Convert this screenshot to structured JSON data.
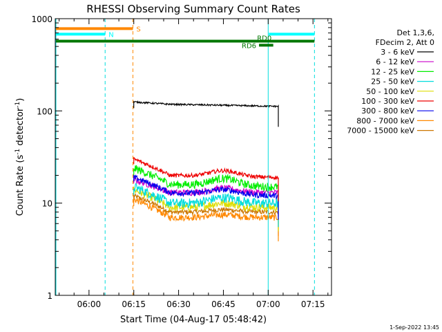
{
  "chart_data": {
    "type": "line",
    "title": "RHESSI Observing Summary Count Rates",
    "xlabel": "Start Time (04-Aug-17 05:48:42)",
    "ylabel_main": "Count Rate (s",
    "ylabel_sup1": "-1",
    "ylabel_mid": " detector",
    "ylabel_sup2": "-1",
    "ylabel_end": ")",
    "yscale": "log",
    "ylim": [
      1,
      1000
    ],
    "xlim_minutes": [
      0,
      92.5
    ],
    "x_ticks": [
      {
        "label": "06:00",
        "minute": 11.3
      },
      {
        "label": "06:15",
        "minute": 26.3
      },
      {
        "label": "06:30",
        "minute": 41.3
      },
      {
        "label": "06:45",
        "minute": 56.3
      },
      {
        "label": "07:00",
        "minute": 71.3
      },
      {
        "label": "07:15",
        "minute": 86.3
      }
    ],
    "y_ticks": [
      {
        "label": "1",
        "value": 1
      },
      {
        "label": "10",
        "value": 10
      },
      {
        "label": "100",
        "value": 100
      },
      {
        "label": "1000",
        "value": 1000
      }
    ],
    "data_start_minute": 26.3,
    "data_end_minute": 74.7,
    "legend_header": [
      "Det 1,3,6,",
      "FDecim 2, Att 0"
    ],
    "series": [
      {
        "name": "3 - 6 keV",
        "color": "#000000",
        "start": 125,
        "mid": 118,
        "end": 112,
        "hump": 0,
        "noise": 0.02
      },
      {
        "name": "6 - 12 keV",
        "color": "#cc00cc",
        "start": 18,
        "mid": 13,
        "end": 13,
        "hump": 1.5,
        "noise": 0.08
      },
      {
        "name": "12 - 25 keV",
        "color": "#00ee00",
        "start": 24,
        "mid": 16,
        "end": 15,
        "hump": 3,
        "noise": 0.1
      },
      {
        "name": "25 - 50 keV",
        "color": "#00dddd",
        "start": 15,
        "mid": 10,
        "end": 10,
        "hump": 1.5,
        "noise": 0.12
      },
      {
        "name": "50 - 100 keV",
        "color": "#dddd00",
        "start": 14,
        "mid": 9,
        "end": 9,
        "hump": 1,
        "noise": 0.1
      },
      {
        "name": "100 - 300 keV",
        "color": "#ee0000",
        "start": 30,
        "mid": 20,
        "end": 19,
        "hump": 3,
        "noise": 0.05
      },
      {
        "name": "300 - 800 keV",
        "color": "#0000ee",
        "start": 19,
        "mid": 13,
        "end": 12,
        "hump": 1.5,
        "noise": 0.07
      },
      {
        "name": "800 - 7000 keV",
        "color": "#ff8800",
        "start": 11,
        "mid": 7,
        "end": 7,
        "hump": 0.5,
        "noise": 0.08
      },
      {
        "name": "7000 - 15000 keV",
        "color": "#cc7700",
        "start": 12,
        "mid": 8,
        "end": 8,
        "hump": 0.5,
        "noise": 0.06
      }
    ],
    "cyan_solid_lines_minutes": [
      0,
      71.3
    ],
    "cyan_dashed_lines_minutes": [
      16.7,
      86.8
    ],
    "orange_dashed_line_minute": 26.0,
    "bars": [
      {
        "label": "S",
        "color": "#ff8800",
        "level": 780,
        "start": 0,
        "end": 26.0
      },
      {
        "label": "N",
        "color": "#00ffff",
        "level": 680,
        "start": 0,
        "end": 16.7
      },
      {
        "label": "",
        "color": "#00ffff",
        "level": 680,
        "start": 71.3,
        "end": 86.8
      },
      {
        "label": "",
        "color": "#007700",
        "level": 570,
        "start": 0,
        "end": 86.8
      },
      {
        "label": "RD0",
        "color": "#007700",
        "level": 570,
        "start": 68.5,
        "end": 68.5
      },
      {
        "label": "RD6",
        "color": "#007700",
        "level": 515,
        "start": 68.0,
        "end": 73.0
      }
    ]
  },
  "timestamp": "1-Sep-2022 13:45"
}
